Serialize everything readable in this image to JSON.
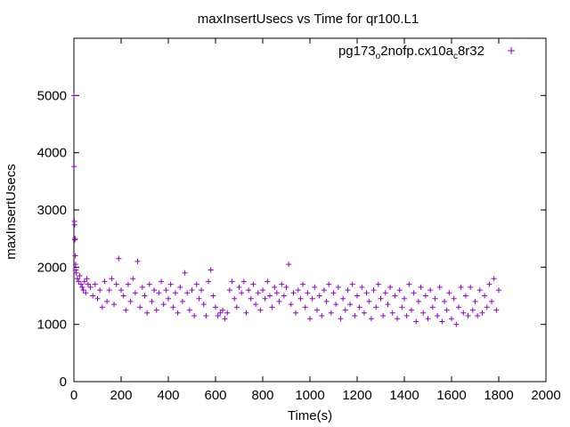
{
  "chart_data": {
    "type": "scatter",
    "title": "maxInsertUsecs vs Time for qr100.L1",
    "xlabel": "Time(s)",
    "ylabel": "maxInsertUsecs",
    "xlim": [
      0,
      2000
    ],
    "ylim": [
      0,
      6000
    ],
    "x_ticks": [
      0,
      200,
      400,
      600,
      800,
      1000,
      1200,
      1400,
      1600,
      1800,
      2000
    ],
    "y_ticks": [
      0,
      1000,
      2000,
      3000,
      4000,
      5000
    ],
    "x_tick_labels": [
      "0",
      "200",
      "400",
      "600",
      "800",
      "1000",
      "1200",
      "1400",
      "1600",
      "1800",
      "2000"
    ],
    "y_tick_labels": [
      "0",
      "1000",
      "2000",
      "3000",
      "4000",
      "5000"
    ],
    "grid": false,
    "legend_position": "top-right",
    "marker": "+",
    "series": [
      {
        "name": "pg173_o2nofp.cx10a_c8r32",
        "legend_parts": {
          "a": "pg173",
          "b": "o",
          "c": "2nofp.cx10a",
          "d": "c",
          "e": "8r32"
        },
        "color": "#9400d3",
        "points": [
          [
            0,
            5000
          ],
          [
            1,
            3760
          ],
          [
            2,
            2800
          ],
          [
            3,
            2740
          ],
          [
            4,
            2480
          ],
          [
            5,
            2500
          ],
          [
            6,
            2200
          ],
          [
            7,
            2050
          ],
          [
            8,
            1950
          ],
          [
            10,
            1900
          ],
          [
            15,
            1800
          ],
          [
            20,
            1750
          ],
          [
            25,
            1850
          ],
          [
            30,
            1700
          ],
          [
            35,
            1650
          ],
          [
            40,
            1600
          ],
          [
            45,
            1750
          ],
          [
            50,
            1550
          ],
          [
            55,
            1800
          ],
          [
            60,
            1700
          ],
          [
            70,
            1650
          ],
          [
            80,
            1500
          ],
          [
            90,
            1700
          ],
          [
            100,
            1450
          ],
          [
            110,
            1600
          ],
          [
            120,
            1300
          ],
          [
            130,
            1750
          ],
          [
            140,
            1400
          ],
          [
            150,
            1600
          ],
          [
            160,
            1800
          ],
          [
            170,
            1350
          ],
          [
            180,
            1700
          ],
          [
            190,
            2150
          ],
          [
            200,
            1600
          ],
          [
            210,
            1500
          ],
          [
            220,
            1250
          ],
          [
            230,
            1700
          ],
          [
            240,
            1400
          ],
          [
            250,
            1800
          ],
          [
            260,
            1550
          ],
          [
            270,
            2100
          ],
          [
            280,
            1300
          ],
          [
            290,
            1650
          ],
          [
            300,
            1500
          ],
          [
            310,
            1200
          ],
          [
            320,
            1700
          ],
          [
            330,
            1400
          ],
          [
            340,
            1600
          ],
          [
            350,
            1250
          ],
          [
            360,
            1550
          ],
          [
            370,
            1750
          ],
          [
            380,
            1350
          ],
          [
            390,
            1600
          ],
          [
            400,
            1450
          ],
          [
            410,
            1700
          ],
          [
            420,
            1300
          ],
          [
            430,
            1550
          ],
          [
            440,
            1200
          ],
          [
            450,
            1650
          ],
          [
            460,
            1400
          ],
          [
            470,
            1900
          ],
          [
            480,
            1550
          ],
          [
            490,
            1250
          ],
          [
            500,
            1600
          ],
          [
            510,
            1150
          ],
          [
            520,
            1700
          ],
          [
            530,
            1450
          ],
          [
            540,
            1600
          ],
          [
            550,
            1350
          ],
          [
            560,
            1150
          ],
          [
            570,
            1750
          ],
          [
            580,
            1950
          ],
          [
            590,
            1500
          ],
          [
            600,
            1300
          ],
          [
            610,
            1150
          ],
          [
            620,
            1200
          ],
          [
            630,
            1250
          ],
          [
            640,
            1100
          ],
          [
            650,
            1200
          ],
          [
            660,
            1600
          ],
          [
            670,
            1750
          ],
          [
            680,
            1450
          ],
          [
            690,
            1300
          ],
          [
            700,
            1650
          ],
          [
            710,
            1550
          ],
          [
            720,
            1750
          ],
          [
            730,
            1200
          ],
          [
            740,
            1600
          ],
          [
            750,
            1450
          ],
          [
            760,
            1700
          ],
          [
            770,
            1350
          ],
          [
            780,
            1550
          ],
          [
            790,
            1250
          ],
          [
            800,
            1600
          ],
          [
            810,
            1450
          ],
          [
            820,
            1750
          ],
          [
            830,
            1500
          ],
          [
            840,
            1300
          ],
          [
            850,
            1650
          ],
          [
            860,
            1550
          ],
          [
            870,
            1400
          ],
          [
            880,
            1700
          ],
          [
            890,
            1500
          ],
          [
            900,
            1650
          ],
          [
            910,
            2050
          ],
          [
            920,
            1350
          ],
          [
            930,
            1550
          ],
          [
            940,
            1200
          ],
          [
            950,
            1600
          ],
          [
            960,
            1450
          ],
          [
            970,
            1700
          ],
          [
            980,
            1300
          ],
          [
            990,
            1550
          ],
          [
            1000,
            1100
          ],
          [
            1010,
            1450
          ],
          [
            1020,
            1650
          ],
          [
            1030,
            1250
          ],
          [
            1040,
            1500
          ],
          [
            1050,
            1150
          ],
          [
            1060,
            1600
          ],
          [
            1070,
            1400
          ],
          [
            1080,
            1700
          ],
          [
            1090,
            1200
          ],
          [
            1100,
            1550
          ],
          [
            1110,
            1350
          ],
          [
            1120,
            1650
          ],
          [
            1130,
            1100
          ],
          [
            1140,
            1450
          ],
          [
            1150,
            1250
          ],
          [
            1160,
            1600
          ],
          [
            1170,
            1350
          ],
          [
            1180,
            1700
          ],
          [
            1190,
            1150
          ],
          [
            1200,
            1500
          ],
          [
            1210,
            1300
          ],
          [
            1220,
            1650
          ],
          [
            1230,
            1200
          ],
          [
            1240,
            1550
          ],
          [
            1250,
            1400
          ],
          [
            1260,
            1100
          ],
          [
            1270,
            1600
          ],
          [
            1280,
            1300
          ],
          [
            1290,
            1700
          ],
          [
            1300,
            1450
          ],
          [
            1310,
            1150
          ],
          [
            1320,
            1550
          ],
          [
            1330,
            1350
          ],
          [
            1340,
            1650
          ],
          [
            1350,
            1200
          ],
          [
            1360,
            1500
          ],
          [
            1370,
            1100
          ],
          [
            1380,
            1600
          ],
          [
            1390,
            1300
          ],
          [
            1400,
            1450
          ],
          [
            1410,
            1150
          ],
          [
            1420,
            1700
          ],
          [
            1430,
            1250
          ],
          [
            1440,
            1550
          ],
          [
            1450,
            1050
          ],
          [
            1460,
            1400
          ],
          [
            1470,
            1650
          ],
          [
            1480,
            1200
          ],
          [
            1490,
            1500
          ],
          [
            1500,
            1100
          ],
          [
            1510,
            1600
          ],
          [
            1520,
            1300
          ],
          [
            1530,
            1450
          ],
          [
            1540,
            1150
          ],
          [
            1550,
            1650
          ],
          [
            1560,
            1050
          ],
          [
            1570,
            1400
          ],
          [
            1580,
            1250
          ],
          [
            1590,
            1550
          ],
          [
            1600,
            1100
          ],
          [
            1610,
            1450
          ],
          [
            1620,
            1000
          ],
          [
            1630,
            1300
          ],
          [
            1640,
            1650
          ],
          [
            1650,
            1200
          ],
          [
            1660,
            1500
          ],
          [
            1670,
            1150
          ],
          [
            1680,
            1650
          ],
          [
            1690,
            1250
          ],
          [
            1700,
            1400
          ],
          [
            1710,
            1150
          ],
          [
            1720,
            1600
          ],
          [
            1730,
            1200
          ],
          [
            1740,
            1500
          ],
          [
            1750,
            1300
          ],
          [
            1760,
            1700
          ],
          [
            1770,
            1400
          ],
          [
            1780,
            1800
          ],
          [
            1790,
            1250
          ],
          [
            1800,
            1600
          ]
        ]
      }
    ]
  }
}
